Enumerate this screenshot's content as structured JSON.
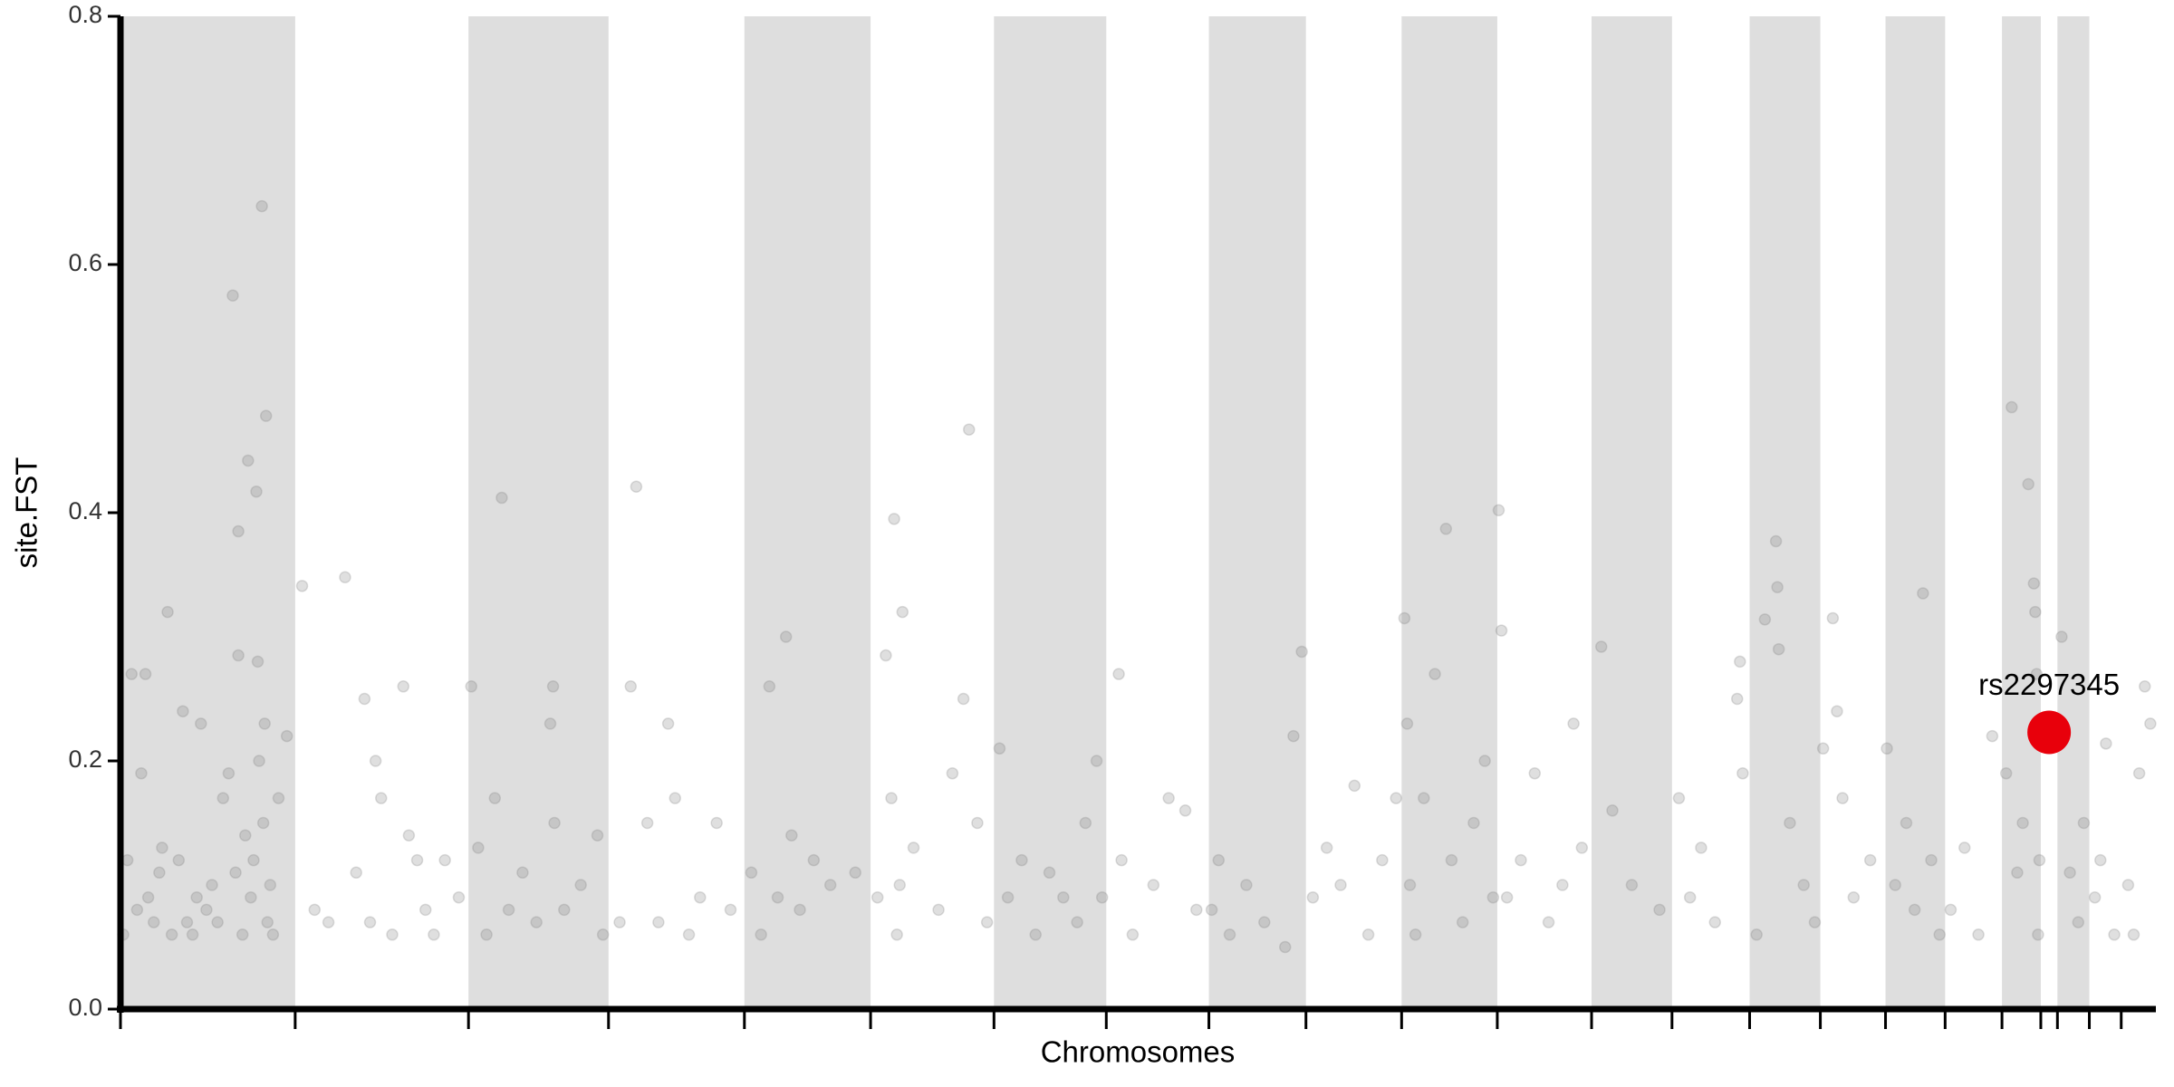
{
  "chart_data": {
    "type": "scatter",
    "x_label": "Chromosomes",
    "y_label": "site.FST",
    "xlim": [
      0,
      1468
    ],
    "ylim": [
      0,
      0.8
    ],
    "xticks": [
      0,
      126,
      251,
      352,
      450,
      541,
      630,
      711,
      785,
      855,
      924,
      993,
      1061,
      1119,
      1175,
      1226,
      1273,
      1316,
      1357,
      1385,
      1397,
      1420,
      1443
    ],
    "yticks": [
      {
        "value": 0,
        "label": "0.0"
      },
      0.2,
      0.4,
      0.6,
      0.8
    ],
    "shaded_bands": "alternate",
    "band_color": "#dedede",
    "series": [
      {
        "color": "#808080",
        "opacity": 0.25,
        "x": [
          2,
          5,
          8,
          12,
          15,
          18,
          20,
          24,
          28,
          30,
          34,
          37,
          42,
          45,
          48,
          52,
          55,
          58,
          62,
          66,
          70,
          74,
          78,
          81,
          83,
          85,
          85,
          88,
          90,
          92,
          94,
          96,
          98,
          99,
          100,
          102,
          103,
          104,
          105,
          106,
          108,
          110,
          114,
          120,
          131,
          140,
          150,
          162,
          170,
          176,
          180,
          184,
          188,
          196,
          204,
          208,
          214,
          220,
          226,
          234,
          244,
          253,
          258,
          264,
          270,
          275,
          280,
          290,
          300,
          310,
          312,
          313,
          320,
          332,
          344,
          348,
          360,
          368,
          372,
          380,
          388,
          395,
          400,
          410,
          418,
          430,
          440,
          455,
          462,
          468,
          474,
          480,
          484,
          490,
          500,
          512,
          530,
          546,
          552,
          556,
          558,
          560,
          562,
          564,
          572,
          590,
          600,
          608,
          612,
          618,
          625,
          634,
          640,
          650,
          660,
          670,
          680,
          690,
          696,
          704,
          708,
          720,
          722,
          730,
          745,
          756,
          768,
          776,
          787,
          792,
          800,
          812,
          825,
          840,
          846,
          852,
          860,
          870,
          880,
          890,
          900,
          910,
          920,
          926,
          928,
          930,
          934,
          940,
          948,
          956,
          960,
          968,
          976,
          984,
          990,
          994,
          996,
          1000,
          1010,
          1020,
          1030,
          1040,
          1048,
          1054,
          1068,
          1076,
          1090,
          1110,
          1124,
          1132,
          1140,
          1150,
          1166,
          1168,
          1170,
          1180,
          1186,
          1194,
          1195,
          1196,
          1204,
          1214,
          1222,
          1228,
          1235,
          1238,
          1242,
          1250,
          1262,
          1274,
          1280,
          1288,
          1294,
          1300,
          1306,
          1312,
          1320,
          1330,
          1340,
          1350,
          1360,
          1364,
          1368,
          1372,
          1376,
          1380,
          1381,
          1382,
          1383,
          1384,
          1400,
          1406,
          1412,
          1416,
          1424,
          1428,
          1432,
          1438,
          1448,
          1452,
          1456,
          1460,
          1464
        ],
        "values": [
          0.06,
          0.12,
          0.27,
          0.08,
          0.19,
          0.27,
          0.09,
          0.07,
          0.11,
          0.13,
          0.32,
          0.06,
          0.12,
          0.24,
          0.07,
          0.06,
          0.09,
          0.23,
          0.08,
          0.1,
          0.07,
          0.17,
          0.19,
          0.575,
          0.11,
          0.385,
          0.285,
          0.06,
          0.14,
          0.442,
          0.09,
          0.12,
          0.417,
          0.28,
          0.2,
          0.647,
          0.15,
          0.23,
          0.478,
          0.07,
          0.1,
          0.06,
          0.17,
          0.22,
          0.341,
          0.08,
          0.07,
          0.348,
          0.11,
          0.25,
          0.07,
          0.2,
          0.17,
          0.06,
          0.26,
          0.14,
          0.12,
          0.08,
          0.06,
          0.12,
          0.09,
          0.26,
          0.13,
          0.06,
          0.17,
          0.412,
          0.08,
          0.11,
          0.07,
          0.23,
          0.26,
          0.15,
          0.08,
          0.1,
          0.14,
          0.06,
          0.07,
          0.26,
          0.421,
          0.15,
          0.07,
          0.23,
          0.17,
          0.06,
          0.09,
          0.15,
          0.08,
          0.11,
          0.06,
          0.26,
          0.09,
          0.3,
          0.14,
          0.08,
          0.12,
          0.1,
          0.11,
          0.09,
          0.285,
          0.17,
          0.395,
          0.06,
          0.1,
          0.32,
          0.13,
          0.08,
          0.19,
          0.25,
          0.467,
          0.15,
          0.07,
          0.21,
          0.09,
          0.12,
          0.06,
          0.11,
          0.09,
          0.07,
          0.15,
          0.2,
          0.09,
          0.27,
          0.12,
          0.06,
          0.1,
          0.17,
          0.16,
          0.08,
          0.08,
          0.12,
          0.06,
          0.1,
          0.07,
          0.05,
          0.22,
          0.288,
          0.09,
          0.13,
          0.1,
          0.18,
          0.06,
          0.12,
          0.17,
          0.315,
          0.23,
          0.1,
          0.06,
          0.17,
          0.27,
          0.387,
          0.12,
          0.07,
          0.15,
          0.2,
          0.09,
          0.402,
          0.305,
          0.09,
          0.12,
          0.19,
          0.07,
          0.1,
          0.23,
          0.13,
          0.292,
          0.16,
          0.1,
          0.08,
          0.17,
          0.09,
          0.13,
          0.07,
          0.25,
          0.28,
          0.19,
          0.06,
          0.314,
          0.377,
          0.34,
          0.29,
          0.15,
          0.1,
          0.07,
          0.21,
          0.315,
          0.24,
          0.17,
          0.09,
          0.12,
          0.21,
          0.1,
          0.15,
          0.08,
          0.335,
          0.12,
          0.06,
          0.08,
          0.13,
          0.06,
          0.22,
          0.19,
          0.485,
          0.11,
          0.15,
          0.423,
          0.343,
          0.32,
          0.27,
          0.06,
          0.12,
          0.3,
          0.11,
          0.07,
          0.15,
          0.09,
          0.12,
          0.214,
          0.06,
          0.1,
          0.06,
          0.19,
          0.26,
          0.23
        ]
      }
    ],
    "highlight": {
      "label": "rs2297345",
      "x": 1391,
      "y": 0.223,
      "color": "#e8000b"
    }
  }
}
